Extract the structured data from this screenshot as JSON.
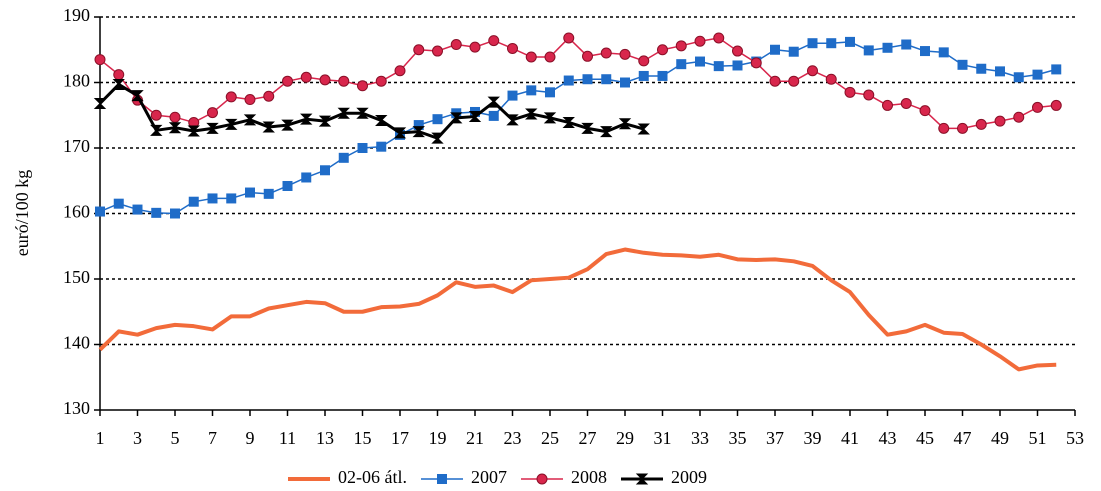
{
  "chart_data": {
    "type": "line",
    "y_label": "euró/100 kg",
    "x": [
      1,
      2,
      3,
      4,
      5,
      6,
      7,
      8,
      9,
      10,
      11,
      12,
      13,
      14,
      15,
      16,
      17,
      18,
      19,
      20,
      21,
      22,
      23,
      24,
      25,
      26,
      27,
      28,
      29,
      30,
      31,
      32,
      33,
      34,
      35,
      36,
      37,
      38,
      39,
      40,
      41,
      42,
      43,
      44,
      45,
      46,
      47,
      48,
      49,
      50,
      51,
      52
    ],
    "xlim": [
      1,
      53
    ],
    "xticks": [
      1,
      3,
      5,
      7,
      9,
      11,
      13,
      15,
      17,
      19,
      21,
      23,
      25,
      27,
      29,
      31,
      33,
      35,
      37,
      39,
      41,
      43,
      45,
      47,
      49,
      51,
      53
    ],
    "ylim": [
      130,
      190
    ],
    "yticks": [
      130,
      140,
      150,
      160,
      170,
      180,
      190
    ],
    "grid": true,
    "legend": "bottom",
    "series": [
      {
        "name": "02-06 átl.",
        "color": "#f26b3a",
        "marker": "none",
        "values": [
          139.2,
          142,
          141.5,
          142.5,
          143,
          142.8,
          142.3,
          144.3,
          144.3,
          145.5,
          146,
          146.5,
          146.3,
          145,
          145,
          145.7,
          145.8,
          146.2,
          147.5,
          149.5,
          148.8,
          149,
          148,
          149.8,
          150,
          150.2,
          151.5,
          153.8,
          154.5,
          154,
          153.7,
          153.6,
          153.4,
          153.7,
          153,
          152.9,
          153,
          152.7,
          152,
          149.8,
          148,
          144.5,
          141.5,
          142,
          143,
          141.8,
          141.6,
          140,
          138.2,
          136.2,
          136.8,
          136.9
        ]
      },
      {
        "name": "2007",
        "color": "#1f6cc8",
        "marker": "square",
        "values": [
          160.3,
          161.5,
          160.6,
          160.1,
          160,
          161.8,
          162.3,
          162.3,
          163.2,
          163,
          164.2,
          165.5,
          166.6,
          168.5,
          170,
          170.2,
          172,
          173.5,
          174.4,
          175.3,
          175.5,
          174.9,
          178,
          178.8,
          178.5,
          180.3,
          180.5,
          180.5,
          180,
          181,
          181,
          182.8,
          183.2,
          182.5,
          182.6,
          183.2,
          185,
          184.7,
          186,
          186,
          186.2,
          184.9,
          185.3,
          185.8,
          184.8,
          184.6,
          182.7,
          182.1,
          181.7,
          180.8,
          181.2,
          182
        ]
      },
      {
        "name": "2008",
        "color": "#d8264c",
        "marker": "circle",
        "values": [
          183.5,
          181.2,
          177.3,
          175,
          174.7,
          173.9,
          175.4,
          177.8,
          177.4,
          177.9,
          180.2,
          180.8,
          180.4,
          180.2,
          179.5,
          180.2,
          181.8,
          185,
          184.8,
          185.8,
          185.4,
          186.4,
          185.2,
          183.9,
          183.9,
          186.8,
          184,
          184.5,
          184.3,
          183.3,
          185,
          185.6,
          186.3,
          186.8,
          184.8,
          183,
          180.2,
          180.2,
          181.8,
          180.5,
          178.5,
          178.1,
          176.5,
          176.8,
          175.7,
          173,
          173,
          173.6,
          174.1,
          174.7,
          176.2,
          176.5
        ]
      },
      {
        "name": "2009",
        "color": "#000000",
        "marker": "bowtie",
        "values": [
          176.8,
          179.7,
          178,
          172.7,
          173.1,
          172.6,
          173,
          173.6,
          174.3,
          173.2,
          173.5,
          174.4,
          174.1,
          175.3,
          175.3,
          174.2,
          172.3,
          172.5,
          171.5,
          174.6,
          174.8,
          177,
          174.3,
          175.2,
          174.6,
          173.9,
          173,
          172.5,
          173.7,
          172.9,
          null,
          null,
          null,
          null,
          null,
          null,
          null,
          null,
          null,
          null,
          null,
          null,
          null,
          null,
          null,
          null,
          null,
          null,
          null,
          null,
          null,
          null
        ]
      }
    ]
  }
}
